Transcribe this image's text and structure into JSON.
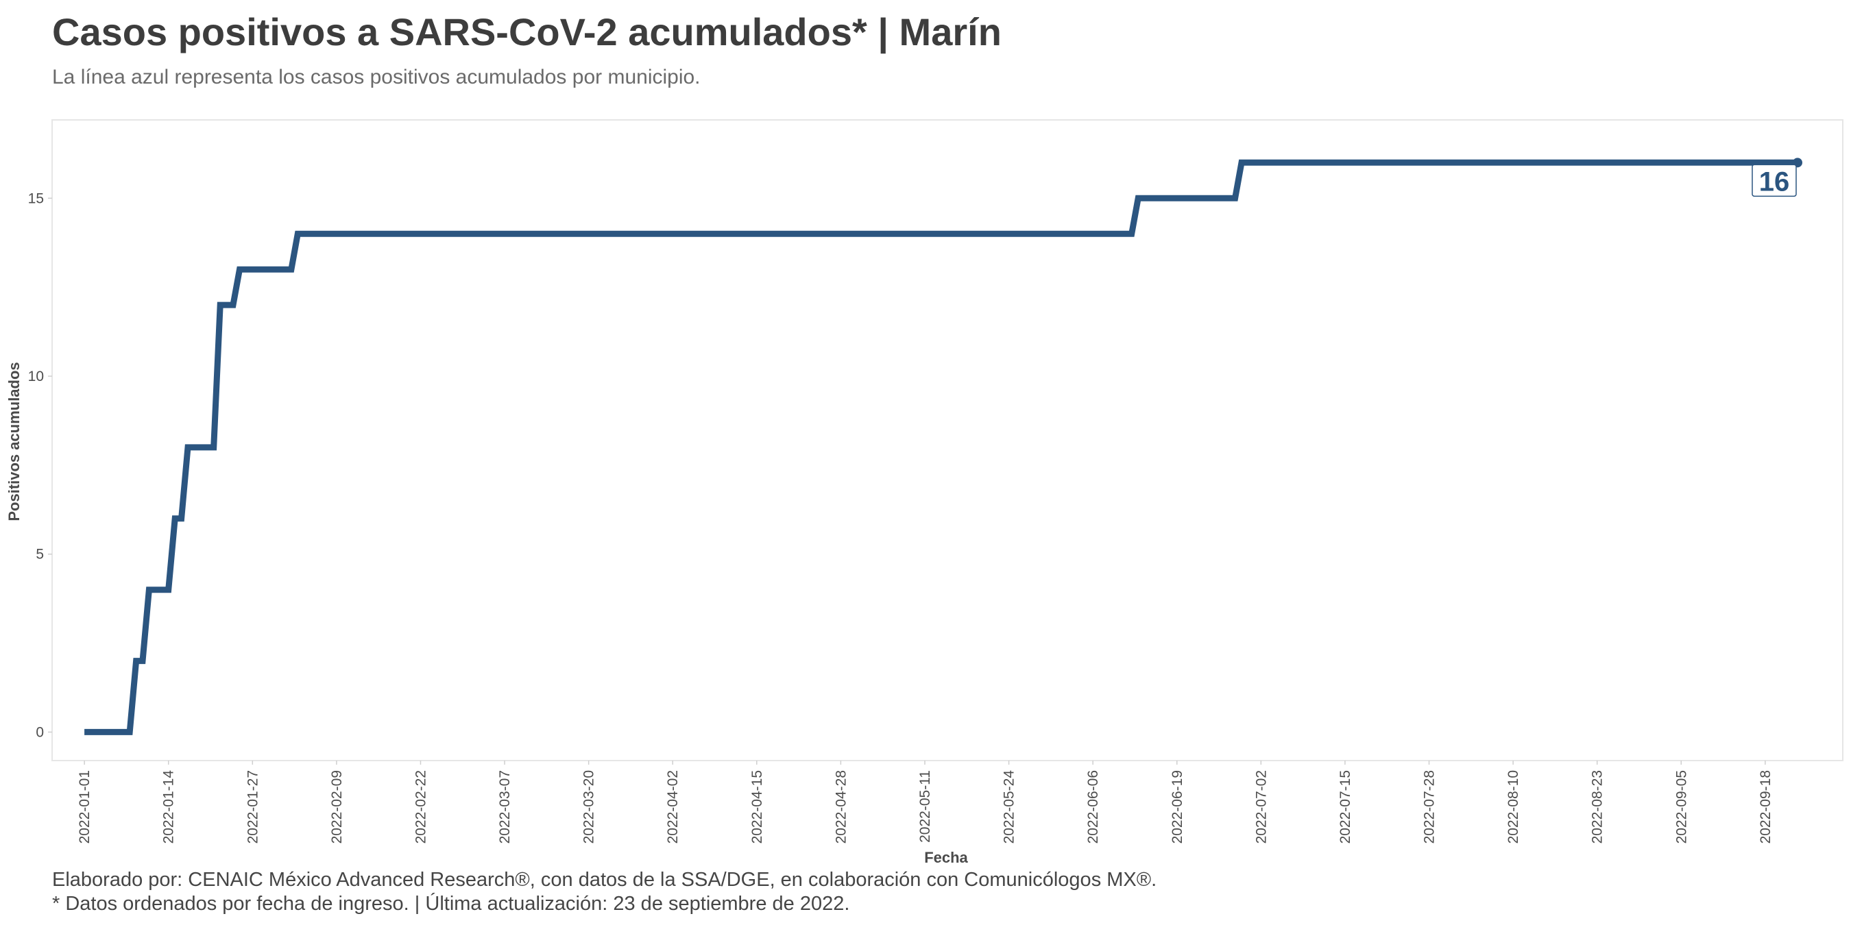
{
  "header": {
    "title": "Casos positivos a SARS-CoV-2 acumulados* | Marín",
    "subtitle": "La línea azul representa los casos positivos acumulados por municipio."
  },
  "footer": {
    "caption_line1": "Elaborado por: CENAIC México Advanced Research®, con datos de la SSA/DGE, en colaboración con Comunicólogos MX®.",
    "caption_line2": "* Datos ordenados por fecha de ingreso. | Última actualización: 23 de septiembre de 2022."
  },
  "colors": {
    "line": "#2b5580",
    "panel_border": "#e6e6e6",
    "text": "#3d3d3d"
  },
  "chart_data": {
    "type": "line",
    "xlabel": "Fecha",
    "ylabel": "Positivos acumulados",
    "x_type": "date",
    "xlim": [
      "2021-12-27",
      "2022-09-30"
    ],
    "ylim": [
      -0.8,
      17.2
    ],
    "y_ticks": [
      0,
      5,
      10,
      15
    ],
    "x_ticks": [
      "2022-01-01",
      "2022-01-14",
      "2022-01-27",
      "2022-02-09",
      "2022-02-22",
      "2022-03-07",
      "2022-03-20",
      "2022-04-02",
      "2022-04-15",
      "2022-04-28",
      "2022-05-11",
      "2022-05-24",
      "2022-06-06",
      "2022-06-19",
      "2022-07-02",
      "2022-07-15",
      "2022-07-28",
      "2022-08-10",
      "2022-08-23",
      "2022-09-05",
      "2022-09-18"
    ],
    "grid": false,
    "step": true,
    "series": [
      {
        "points": [
          {
            "x": "2022-01-01",
            "y": 0
          },
          {
            "x": "2022-01-09",
            "y": 2
          },
          {
            "x": "2022-01-11",
            "y": 4
          },
          {
            "x": "2022-01-15",
            "y": 6
          },
          {
            "x": "2022-01-17",
            "y": 8
          },
          {
            "x": "2022-01-22",
            "y": 12
          },
          {
            "x": "2022-01-25",
            "y": 13
          },
          {
            "x": "2022-02-03",
            "y": 14
          },
          {
            "x": "2022-06-13",
            "y": 15
          },
          {
            "x": "2022-06-29",
            "y": 16
          },
          {
            "x": "2022-09-23",
            "y": 16
          }
        ]
      }
    ],
    "end_label": "16"
  }
}
